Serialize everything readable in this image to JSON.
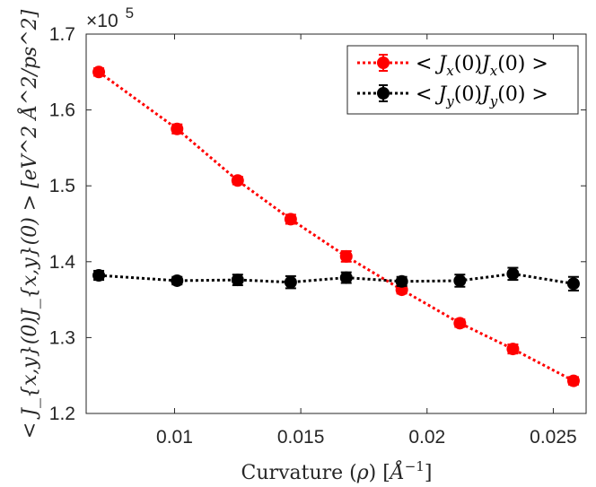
{
  "chart_data": {
    "type": "line",
    "x": [
      0.007,
      0.0101,
      0.0125,
      0.0146,
      0.0168,
      0.019,
      0.0213,
      0.0234,
      0.0258
    ],
    "series": [
      {
        "name": "< J_x(0)J_x(0) >",
        "legend_parts": [
          "< ",
          "J",
          "x",
          "(0)",
          "J",
          "x",
          "(0) >"
        ],
        "color": "#ff0000",
        "values": [
          1.65,
          1.575,
          1.507,
          1.456,
          1.407,
          1.363,
          1.319,
          1.285,
          1.243
        ],
        "errors": [
          0.005,
          0.006,
          0.005,
          0.006,
          0.007,
          0.005,
          0.005,
          0.006,
          0.005
        ]
      },
      {
        "name": "< J_y(0)J_y(0) >",
        "legend_parts": [
          "< ",
          "J",
          "y",
          "(0)",
          "J",
          "y",
          "(0) >"
        ],
        "color": "#000000",
        "values": [
          1.382,
          1.375,
          1.376,
          1.373,
          1.379,
          1.374,
          1.375,
          1.384,
          1.371
        ],
        "errors": [
          0.006,
          0.005,
          0.007,
          0.008,
          0.007,
          0.006,
          0.008,
          0.008,
          0.009
        ]
      }
    ],
    "xlim": [
      0.0065,
      0.0263
    ],
    "ylim": [
      1.2,
      1.7
    ],
    "xticks": [
      0.01,
      0.015,
      0.02,
      0.025
    ],
    "xtick_labels": [
      "0.01",
      "0.015",
      "0.02",
      "0.025"
    ],
    "yticks": [
      1.2,
      1.3,
      1.4,
      1.5,
      1.6,
      1.7
    ],
    "ytick_labels": [
      "1.2",
      "1.3",
      "1.4",
      "1.5",
      "1.6",
      "1.7"
    ],
    "multiplier": {
      "base": "×10",
      "exponent": "5"
    },
    "xlabel": {
      "text": "Curvature (",
      "symbol": "ρ",
      "close": ") [",
      "unit": "Å",
      "exp": "−1",
      "end": "]"
    },
    "ylabel": "< J_{x,y}(0)J_{x,y}(0) > [eV^2 Å^2/ps^2]",
    "legend_position": "top-right",
    "grid": false
  }
}
